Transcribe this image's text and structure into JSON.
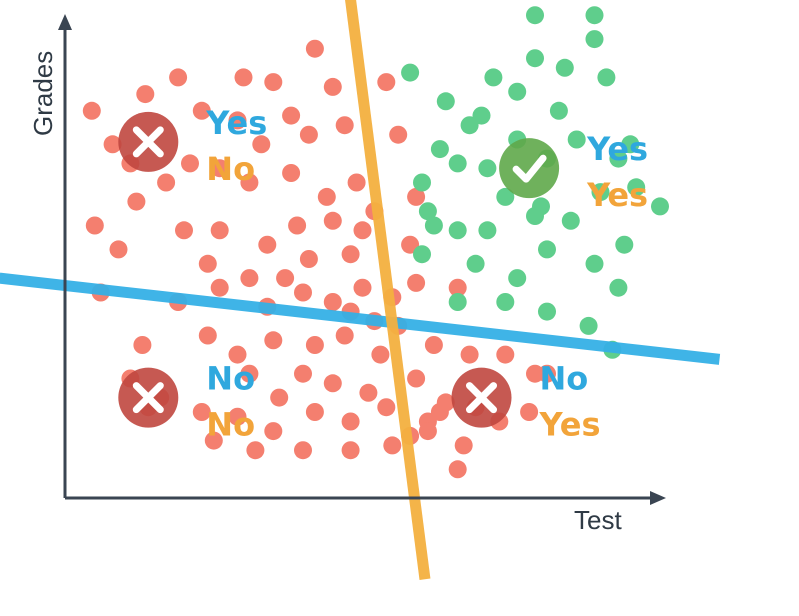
{
  "chart_data": {
    "type": "scatter",
    "xlabel": "Test",
    "ylabel": "Grades",
    "xlim": [
      0,
      10
    ],
    "ylim": [
      0,
      10
    ],
    "grid": false,
    "colors": {
      "red": "#f47f6f",
      "green": "#5fce8c",
      "blue_line": "#35b0e6",
      "orange_line": "#f4b140",
      "axis": "#3a4552",
      "text_blue": "#2fa8de",
      "text_orange": "#f2a43a",
      "icon_wrong": "#c0473f",
      "icon_right": "#5fa84a"
    },
    "series": [
      {
        "points": [
          [
            0.45,
            8.1
          ],
          [
            1.35,
            8.45
          ],
          [
            1.7,
            6.6
          ],
          [
            0.8,
            7.4
          ],
          [
            1.2,
            6.2
          ],
          [
            0.5,
            5.7
          ],
          [
            0.9,
            5.2
          ],
          [
            0.6,
            4.3
          ],
          [
            1.3,
            3.2
          ],
          [
            1.1,
            2.5
          ],
          [
            1.9,
            8.8
          ],
          [
            2.3,
            8.1
          ],
          [
            2.9,
            7.9
          ],
          [
            3.3,
            7.4
          ],
          [
            3.8,
            8.0
          ],
          [
            4.1,
            7.6
          ],
          [
            4.5,
            8.6
          ],
          [
            4.2,
            9.4
          ],
          [
            4.7,
            7.8
          ],
          [
            3.0,
            8.8
          ],
          [
            3.5,
            8.7
          ],
          [
            2.1,
            7.0
          ],
          [
            2.6,
            6.9
          ],
          [
            3.1,
            6.6
          ],
          [
            2.0,
            5.6
          ],
          [
            2.6,
            5.6
          ],
          [
            3.4,
            5.3
          ],
          [
            3.9,
            5.7
          ],
          [
            4.4,
            6.3
          ],
          [
            4.9,
            6.6
          ],
          [
            5.2,
            6.0
          ],
          [
            4.5,
            5.8
          ],
          [
            5.0,
            5.6
          ],
          [
            4.8,
            5.1
          ],
          [
            3.7,
            4.6
          ],
          [
            3.1,
            4.6
          ],
          [
            2.4,
            4.9
          ],
          [
            1.9,
            4.1
          ],
          [
            2.6,
            4.4
          ],
          [
            3.4,
            4.0
          ],
          [
            4.0,
            4.3
          ],
          [
            4.5,
            4.1
          ],
          [
            5.0,
            4.4
          ],
          [
            5.5,
            4.2
          ],
          [
            4.8,
            3.9
          ],
          [
            5.2,
            3.7
          ],
          [
            2.4,
            3.4
          ],
          [
            2.9,
            3.0
          ],
          [
            3.5,
            3.3
          ],
          [
            4.2,
            3.2
          ],
          [
            4.7,
            3.4
          ],
          [
            5.3,
            3.0
          ],
          [
            5.6,
            3.6
          ],
          [
            3.1,
            2.6
          ],
          [
            3.6,
            2.1
          ],
          [
            4.0,
            2.6
          ],
          [
            4.5,
            2.4
          ],
          [
            5.1,
            2.2
          ],
          [
            1.6,
            2.1
          ],
          [
            2.3,
            1.8
          ],
          [
            2.9,
            1.7
          ],
          [
            3.5,
            1.4
          ],
          [
            4.2,
            1.8
          ],
          [
            4.8,
            1.6
          ],
          [
            5.4,
            1.9
          ],
          [
            5.8,
            1.3
          ],
          [
            6.1,
            1.6
          ],
          [
            2.5,
            1.2
          ],
          [
            3.2,
            1.0
          ],
          [
            4.0,
            1.0
          ],
          [
            4.8,
            1.0
          ],
          [
            5.5,
            1.1
          ],
          [
            5.9,
            2.5
          ],
          [
            6.1,
            1.4
          ],
          [
            6.7,
            1.1
          ],
          [
            6.6,
            0.6
          ],
          [
            6.3,
            1.8
          ],
          [
            6.9,
            1.9
          ],
          [
            7.3,
            1.6
          ],
          [
            7.8,
            1.8
          ],
          [
            8.1,
            2.6
          ],
          [
            6.8,
            3.0
          ],
          [
            7.4,
            3.0
          ],
          [
            7.9,
            2.6
          ],
          [
            5.8,
            5.3
          ],
          [
            5.9,
            4.5
          ],
          [
            1.1,
            7.0
          ],
          [
            3.8,
            6.8
          ],
          [
            4.1,
            5.0
          ],
          [
            5.6,
            7.6
          ],
          [
            5.4,
            8.7
          ],
          [
            6.2,
            3.2
          ],
          [
            6.4,
            2.0
          ],
          [
            1.4,
            1.9
          ],
          [
            6.6,
            4.4
          ],
          [
            5.9,
            6.3
          ]
        ]
      },
      {
        "points": [
          [
            5.8,
            8.9
          ],
          [
            6.4,
            8.3
          ],
          [
            6.8,
            7.8
          ],
          [
            7.2,
            8.8
          ],
          [
            7.6,
            8.5
          ],
          [
            7.9,
            9.2
          ],
          [
            8.4,
            9.0
          ],
          [
            8.9,
            9.6
          ],
          [
            9.1,
            8.8
          ],
          [
            7.9,
            10.1
          ],
          [
            8.9,
            10.1
          ],
          [
            6.3,
            7.3
          ],
          [
            6.6,
            7.0
          ],
          [
            6.0,
            6.6
          ],
          [
            7.1,
            6.9
          ],
          [
            7.6,
            7.5
          ],
          [
            8.1,
            7.1
          ],
          [
            8.6,
            7.5
          ],
          [
            9.3,
            7.1
          ],
          [
            9.6,
            6.5
          ],
          [
            10.0,
            6.1
          ],
          [
            6.1,
            6.0
          ],
          [
            6.6,
            5.6
          ],
          [
            7.1,
            5.6
          ],
          [
            7.4,
            6.3
          ],
          [
            8.0,
            6.1
          ],
          [
            8.5,
            5.8
          ],
          [
            9.0,
            6.4
          ],
          [
            9.4,
            5.3
          ],
          [
            6.0,
            5.1
          ],
          [
            6.9,
            4.9
          ],
          [
            7.6,
            4.6
          ],
          [
            8.1,
            5.2
          ],
          [
            8.9,
            4.9
          ],
          [
            9.3,
            4.4
          ],
          [
            6.6,
            4.1
          ],
          [
            7.4,
            4.1
          ],
          [
            8.1,
            3.9
          ],
          [
            8.8,
            3.6
          ],
          [
            9.2,
            3.1
          ],
          [
            6.2,
            5.7
          ],
          [
            7.0,
            8.0
          ],
          [
            8.3,
            8.1
          ],
          [
            9.5,
            7.4
          ],
          [
            7.9,
            5.9
          ]
        ]
      }
    ],
    "lines": [
      {
        "from": [
          -1.1,
          4.6
        ],
        "to": [
          11.0,
          2.9
        ]
      },
      {
        "from": [
          4.75,
          10.9
        ],
        "to": [
          6.05,
          -1.7
        ]
      }
    ],
    "annotations": [
      {
        "icon": "wrong",
        "at": [
          1.4,
          7.45
        ],
        "line1": "Yes",
        "line2": "No"
      },
      {
        "icon": "right",
        "at": [
          7.8,
          6.9
        ],
        "line1": "Yes",
        "line2": "Yes"
      },
      {
        "icon": "wrong",
        "at": [
          1.4,
          2.1
        ],
        "line1": "No",
        "line2": "No"
      },
      {
        "icon": "wrong",
        "at": [
          7.0,
          2.1
        ],
        "line1": "No",
        "line2": "Yes"
      }
    ]
  }
}
